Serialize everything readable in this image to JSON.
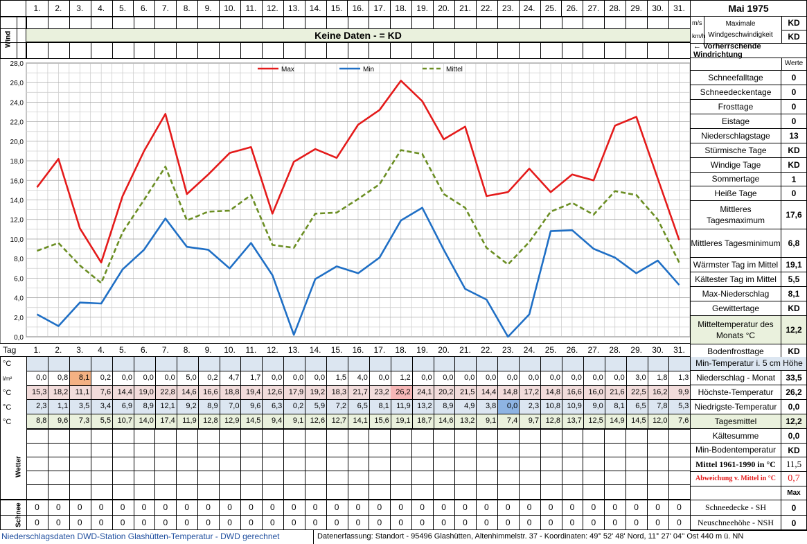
{
  "header": {
    "title": "Mai 1975",
    "wind_label": "Wind",
    "no_data_text": "Keine Daten -  = KD",
    "units_ms": "m/s",
    "units_kmh": "km/h",
    "max_wind_label": "Maximale Windgeschwindigkeit",
    "max_wind_ms": "KD",
    "max_wind_kmh": "KD",
    "prevailing_wind_label": "← Vorherrschende Windrichtung",
    "werte_label": "Werte"
  },
  "days": [
    "1.",
    "2.",
    "3.",
    "4.",
    "5.",
    "6.",
    "7.",
    "8.",
    "9.",
    "10.",
    "11.",
    "12.",
    "13.",
    "14.",
    "15.",
    "16.",
    "17.",
    "18.",
    "19.",
    "20.",
    "21.",
    "22.",
    "23.",
    "24.",
    "25.",
    "26.",
    "27.",
    "28.",
    "29.",
    "30.",
    "31."
  ],
  "chart_data": {
    "type": "line",
    "x": [
      1,
      2,
      3,
      4,
      5,
      6,
      7,
      8,
      9,
      10,
      11,
      12,
      13,
      14,
      15,
      16,
      17,
      18,
      19,
      20,
      21,
      22,
      23,
      24,
      25,
      26,
      27,
      28,
      29,
      30,
      31
    ],
    "ylim": [
      0,
      28
    ],
    "yticks": [
      "0,0",
      "2,0",
      "4,0",
      "6,0",
      "8,0",
      "10,0",
      "12,0",
      "14,0",
      "16,0",
      "18,0",
      "20,0",
      "22,0",
      "24,0",
      "26,0",
      "28,0"
    ],
    "grid": true,
    "legend": "top",
    "series": [
      {
        "name": "Max",
        "color": "#e41a1a",
        "dash": false,
        "values": [
          15.3,
          18.2,
          11.1,
          7.6,
          14.4,
          19.0,
          22.8,
          14.6,
          16.6,
          18.8,
          19.4,
          12.6,
          17.9,
          19.2,
          18.3,
          21.7,
          23.2,
          26.2,
          24.1,
          20.2,
          21.5,
          14.4,
          14.8,
          17.2,
          14.8,
          16.6,
          16.0,
          21.6,
          22.5,
          16.2,
          9.9
        ]
      },
      {
        "name": "Min",
        "color": "#1f6fc5",
        "dash": false,
        "values": [
          2.3,
          1.1,
          3.5,
          3.4,
          6.9,
          8.9,
          12.1,
          9.2,
          8.9,
          7.0,
          9.6,
          6.3,
          0.2,
          5.9,
          7.2,
          6.5,
          8.1,
          11.9,
          13.2,
          8.9,
          4.9,
          3.8,
          0.0,
          2.3,
          10.8,
          10.9,
          9.0,
          8.1,
          6.5,
          7.8,
          5.3
        ]
      },
      {
        "name": "Mittel",
        "color": "#6b8e23",
        "dash": true,
        "values": [
          8.8,
          9.6,
          7.3,
          5.5,
          10.7,
          14.0,
          17.4,
          11.9,
          12.8,
          12.9,
          14.5,
          9.4,
          9.1,
          12.6,
          12.7,
          14.1,
          15.6,
          19.1,
          18.7,
          14.6,
          13.2,
          9.1,
          7.4,
          9.7,
          12.8,
          13.7,
          12.5,
          14.9,
          14.5,
          12.0,
          7.6
        ]
      }
    ]
  },
  "table": {
    "tag_label": "Tag",
    "rows": [
      {
        "unit": "°C",
        "label": "",
        "values": [],
        "style": "blue"
      },
      {
        "unit": "l/m²",
        "label": "Niederschlag",
        "values": [
          "0,0",
          "0,8",
          "8,1",
          "0,2",
          "0,0",
          "0,0",
          "0,0",
          "5,0",
          "0,2",
          "4,7",
          "1,7",
          "0,0",
          "0,0",
          "0,0",
          "1,5",
          "4,0",
          "0,0",
          "1,2",
          "0,0",
          "0,0",
          "0,0",
          "0,0",
          "0,0",
          "0,0",
          "0,0",
          "0,0",
          "0,0",
          "0,0",
          "3,0",
          "1,8",
          "1,3"
        ],
        "style": "plain"
      },
      {
        "unit": "°C",
        "label": "Max",
        "values": [
          "15,3",
          "18,2",
          "11,1",
          "7,6",
          "14,4",
          "19,0",
          "22,8",
          "14,6",
          "16,6",
          "18,8",
          "19,4",
          "12,6",
          "17,9",
          "19,2",
          "18,3",
          "21,7",
          "23,2",
          "26,2",
          "24,1",
          "20,2",
          "21,5",
          "14,4",
          "14,8",
          "17,2",
          "14,8",
          "16,6",
          "16,0",
          "21,6",
          "22,5",
          "16,2",
          "9,9"
        ],
        "style": "pink"
      },
      {
        "unit": "°C",
        "label": "Min",
        "values": [
          "2,3",
          "1,1",
          "3,5",
          "3,4",
          "6,9",
          "8,9",
          "12,1",
          "9,2",
          "8,9",
          "7,0",
          "9,6",
          "6,3",
          "0,2",
          "5,9",
          "7,2",
          "6,5",
          "8,1",
          "11,9",
          "13,2",
          "8,9",
          "4,9",
          "3,8",
          "0,0",
          "2,3",
          "10,8",
          "10,9",
          "9,0",
          "8,1",
          "6,5",
          "7,8",
          "5,3"
        ],
        "style": "blue"
      },
      {
        "unit": "°C",
        "label": "Mittel",
        "values": [
          "8,8",
          "9,6",
          "7,3",
          "5,5",
          "10,7",
          "14,0",
          "17,4",
          "11,9",
          "12,8",
          "12,9",
          "14,5",
          "9,4",
          "9,1",
          "12,6",
          "12,7",
          "14,1",
          "15,6",
          "19,1",
          "18,7",
          "14,6",
          "13,2",
          "9,1",
          "7,4",
          "9,7",
          "12,8",
          "13,7",
          "12,5",
          "14,9",
          "14,5",
          "12,0",
          "7,6"
        ],
        "style": "green"
      }
    ],
    "wetter_label": "Wetter",
    "schnee_label": "Schnee",
    "snow_rows": [
      [
        "0",
        "0",
        "0",
        "0",
        "0",
        "0",
        "0",
        "0",
        "0",
        "0",
        "0",
        "0",
        "0",
        "0",
        "0",
        "0",
        "0",
        "0",
        "0",
        "0",
        "0",
        "0",
        "0",
        "0",
        "0",
        "0",
        "0",
        "0",
        "0",
        "0",
        "0"
      ],
      [
        "0",
        "0",
        "0",
        "0",
        "0",
        "0",
        "0",
        "0",
        "0",
        "0",
        "0",
        "0",
        "0",
        "0",
        "0",
        "0",
        "0",
        "0",
        "0",
        "0",
        "0",
        "0",
        "0",
        "0",
        "0",
        "0",
        "0",
        "0",
        "0",
        "0",
        "0"
      ]
    ]
  },
  "stats": [
    {
      "label": "Schneefalltage",
      "value": "0"
    },
    {
      "label": "Schneedeckentage",
      "value": "0"
    },
    {
      "label": "Frosttage",
      "value": "0"
    },
    {
      "label": "Eistage",
      "value": "0"
    },
    {
      "label": "Niederschlagstage",
      "value": "13"
    },
    {
      "label": "Stürmische Tage",
      "value": "KD"
    },
    {
      "label": "Windige Tage",
      "value": "KD"
    },
    {
      "label": "Sommertage",
      "value": "1"
    },
    {
      "label": "Heiße Tage",
      "value": "0"
    },
    {
      "label": "Mittleres Tagesmaximum",
      "value": "17,6"
    },
    {
      "label": "Mittleres Tagesminimum",
      "value": "6,8"
    },
    {
      "label": "Wärmster Tag im Mittel",
      "value": "19,1"
    },
    {
      "label": "Kältester Tag im Mittel",
      "value": "5,5"
    },
    {
      "label": "Max-Niederschlag",
      "value": "8,1"
    },
    {
      "label": "Gewittertage",
      "value": "KD"
    },
    {
      "label": "Mitteltemperatur des Monats °C",
      "value": "12,2"
    },
    {
      "label": "Bodenfrosttage",
      "value": "KD"
    }
  ],
  "lower_stats": [
    {
      "label": "Min-Temperatur i. 5 cm Höhe",
      "value": ""
    },
    {
      "label": "Niederschlag - Monat",
      "value": "33,5"
    },
    {
      "label": "Höchste-Temperatur",
      "value": "26,2"
    },
    {
      "label": "Niedrigste-Temperatur",
      "value": "0,0"
    },
    {
      "label": "Tagesmittel",
      "value": "12,2"
    },
    {
      "label": "Kältesumme",
      "value": "0,0"
    },
    {
      "label": "Min-Bodentemperatur",
      "value": "KD"
    },
    {
      "label": "Mittel 1961-1990 in °C",
      "value": "11,5"
    },
    {
      "label": "Abweichung v. Mittel in °C",
      "value": "0,7"
    },
    {
      "label": "",
      "value": "Max"
    },
    {
      "label": "Schneedecke -   SH",
      "value": "0"
    },
    {
      "label": "Neuschneehöhe - NSH",
      "value": "0"
    }
  ],
  "footer": {
    "left": "Niederschlagsdaten DWD-Station Glashütten-Temperatur -  DWD gerechnet",
    "right": "Datenerfassung: Standort -  95496  Glashütten, Altenhimmelstr. 37 - Koordinaten:  49° 52' 48' Nord,   11° 27' 04'' Ost   440 m ü. NN"
  }
}
